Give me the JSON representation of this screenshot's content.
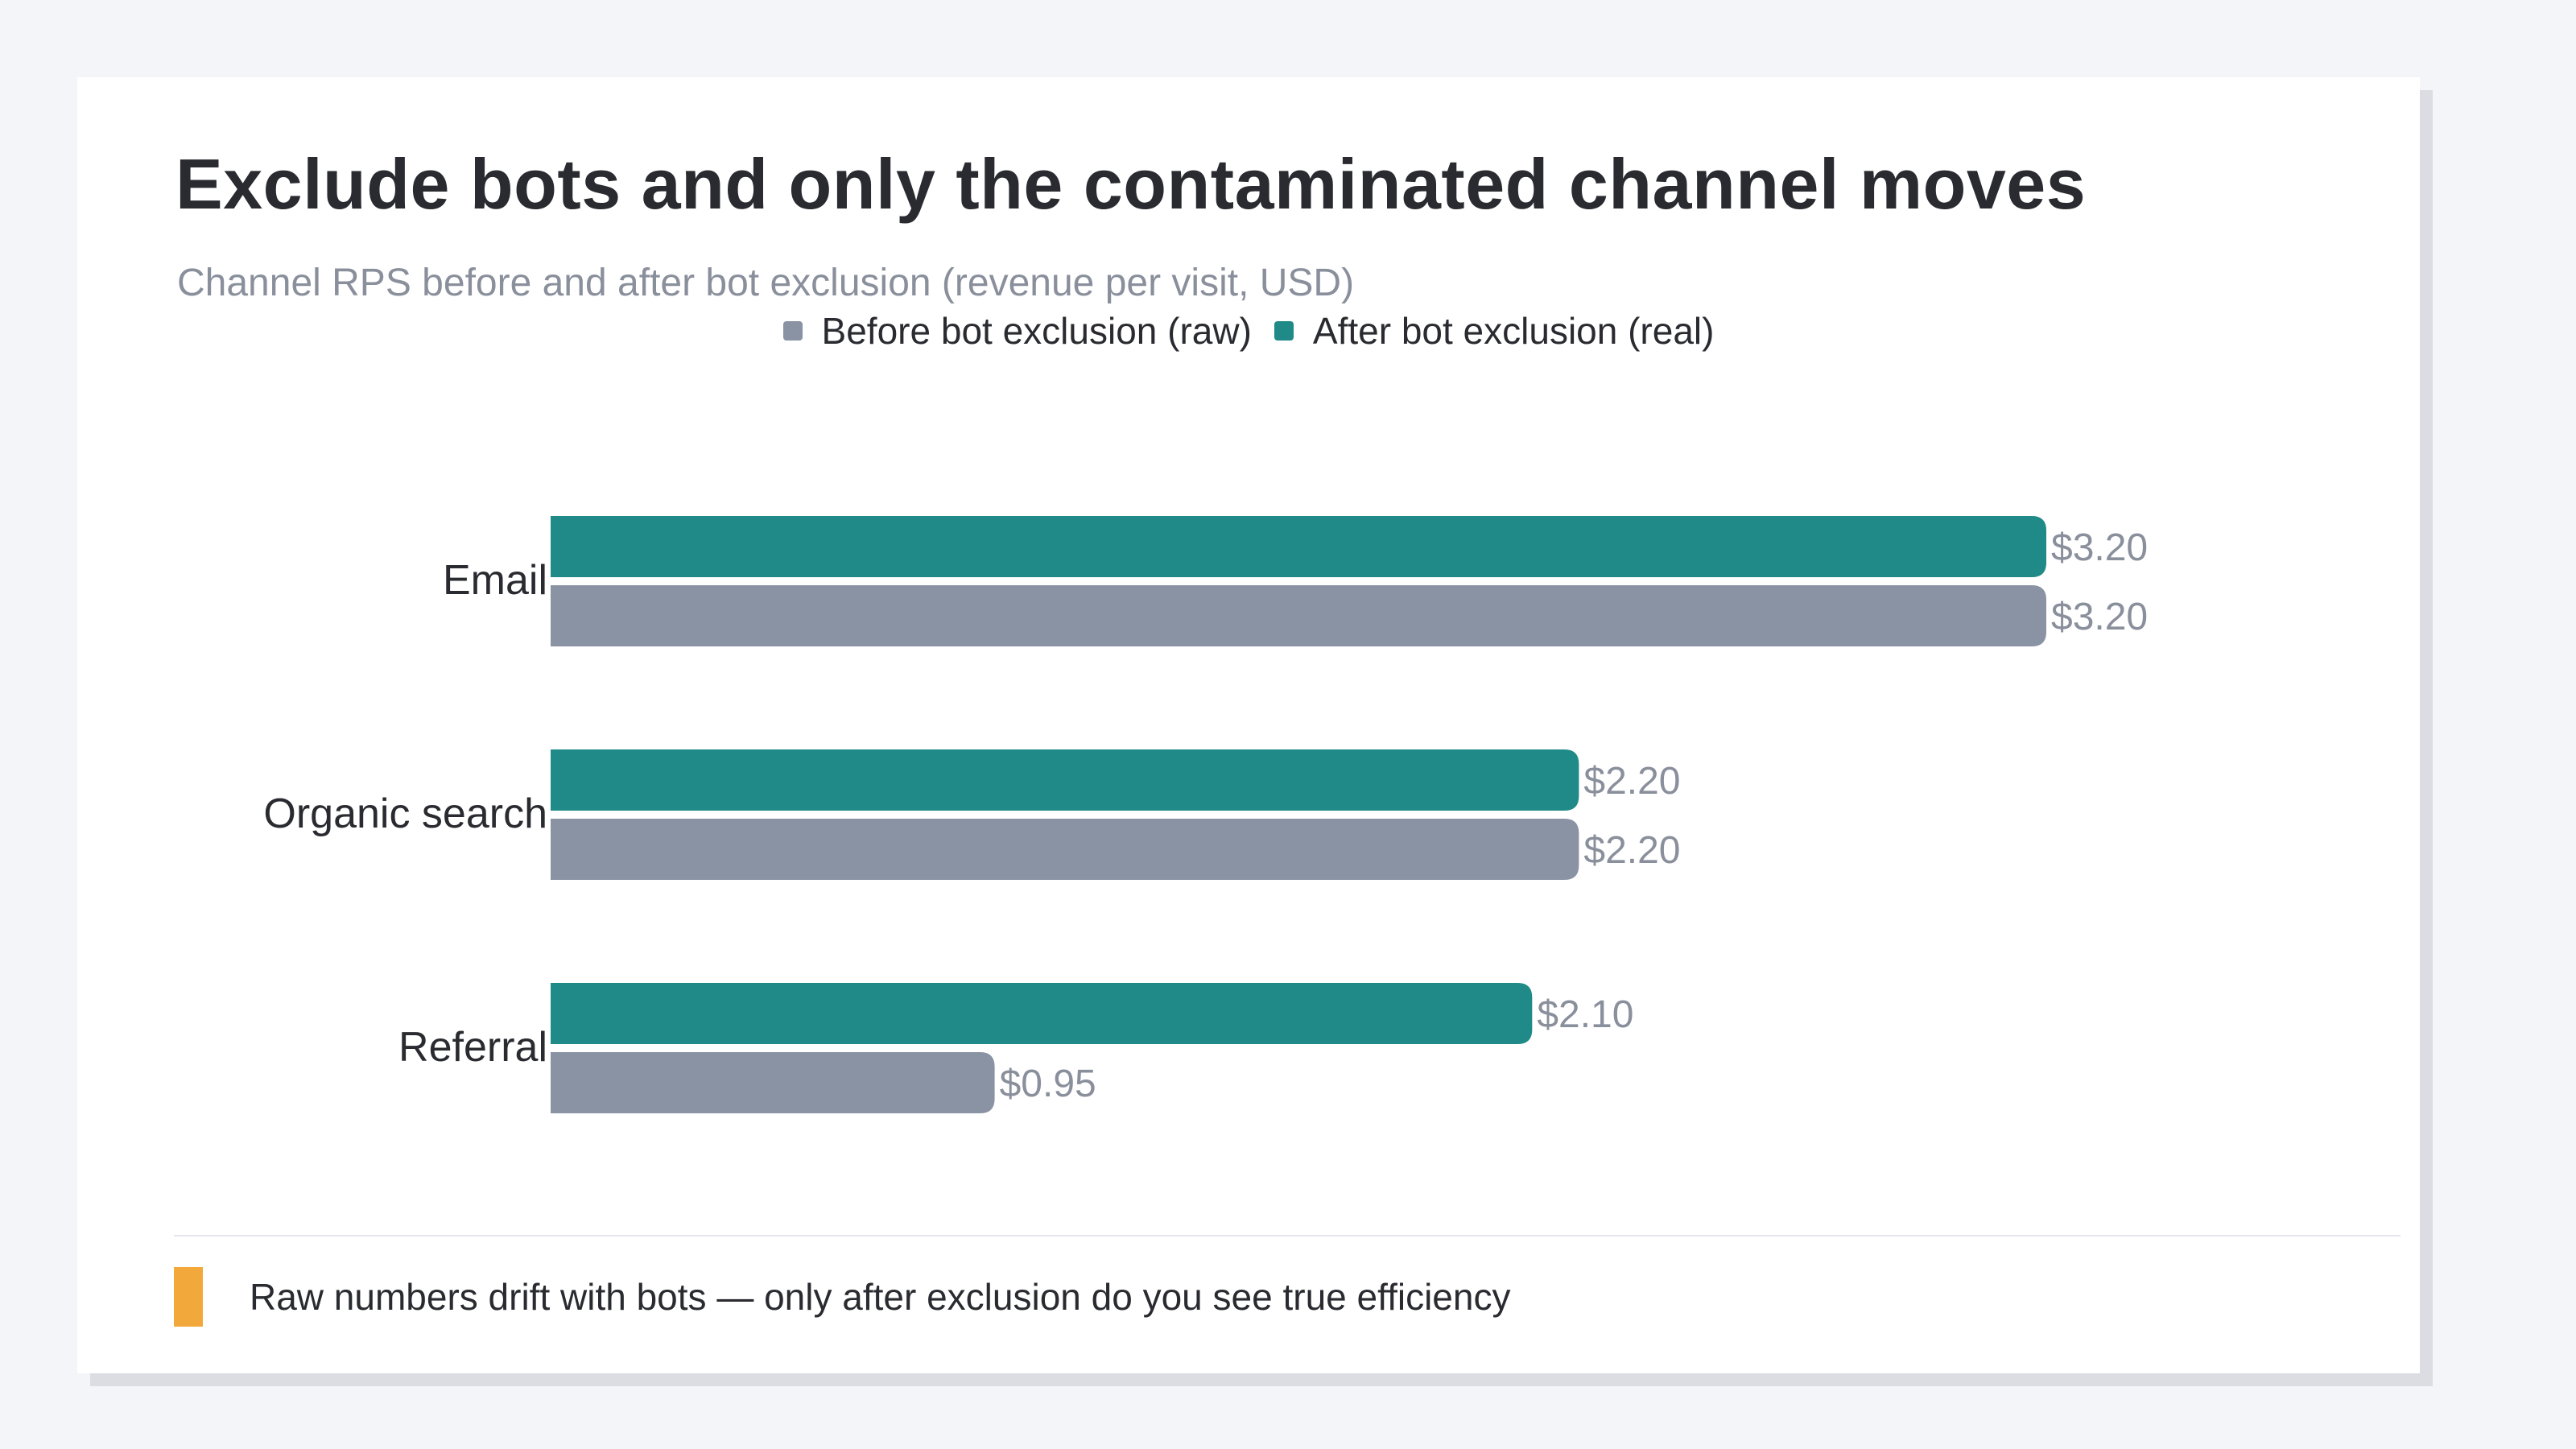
{
  "chart_data": {
    "type": "bar",
    "orientation": "horizontal",
    "title": "Exclude bots and only the contaminated channel moves",
    "subtitle": "Channel RPS before and after bot exclusion (revenue per visit, USD)",
    "categories": [
      "Email",
      "Organic search",
      "Referral"
    ],
    "series": [
      {
        "name": "After bot exclusion (real)",
        "color": "#1f8a87",
        "values": [
          3.2,
          2.2,
          2.1
        ],
        "labels": [
          "$3.20",
          "$2.20",
          "$2.10"
        ]
      },
      {
        "name": "Before bot exclusion (raw)",
        "color": "#8a93a3",
        "values": [
          3.2,
          2.2,
          0.95
        ],
        "labels": [
          "$3.20",
          "$2.20",
          "$0.95"
        ]
      }
    ],
    "xlim": [
      0,
      3.2
    ],
    "grid": false,
    "legend_position": "top-center"
  },
  "legend": [
    {
      "label": "Before bot exclusion (raw)",
      "color": "#8a93a3"
    },
    {
      "label": "After bot exclusion (real)",
      "color": "#1f8a87"
    }
  ],
  "note": {
    "text": "Raw numbers drift with bots — only after exclusion do you see true efficiency",
    "accent_color": "#f2a83b"
  }
}
